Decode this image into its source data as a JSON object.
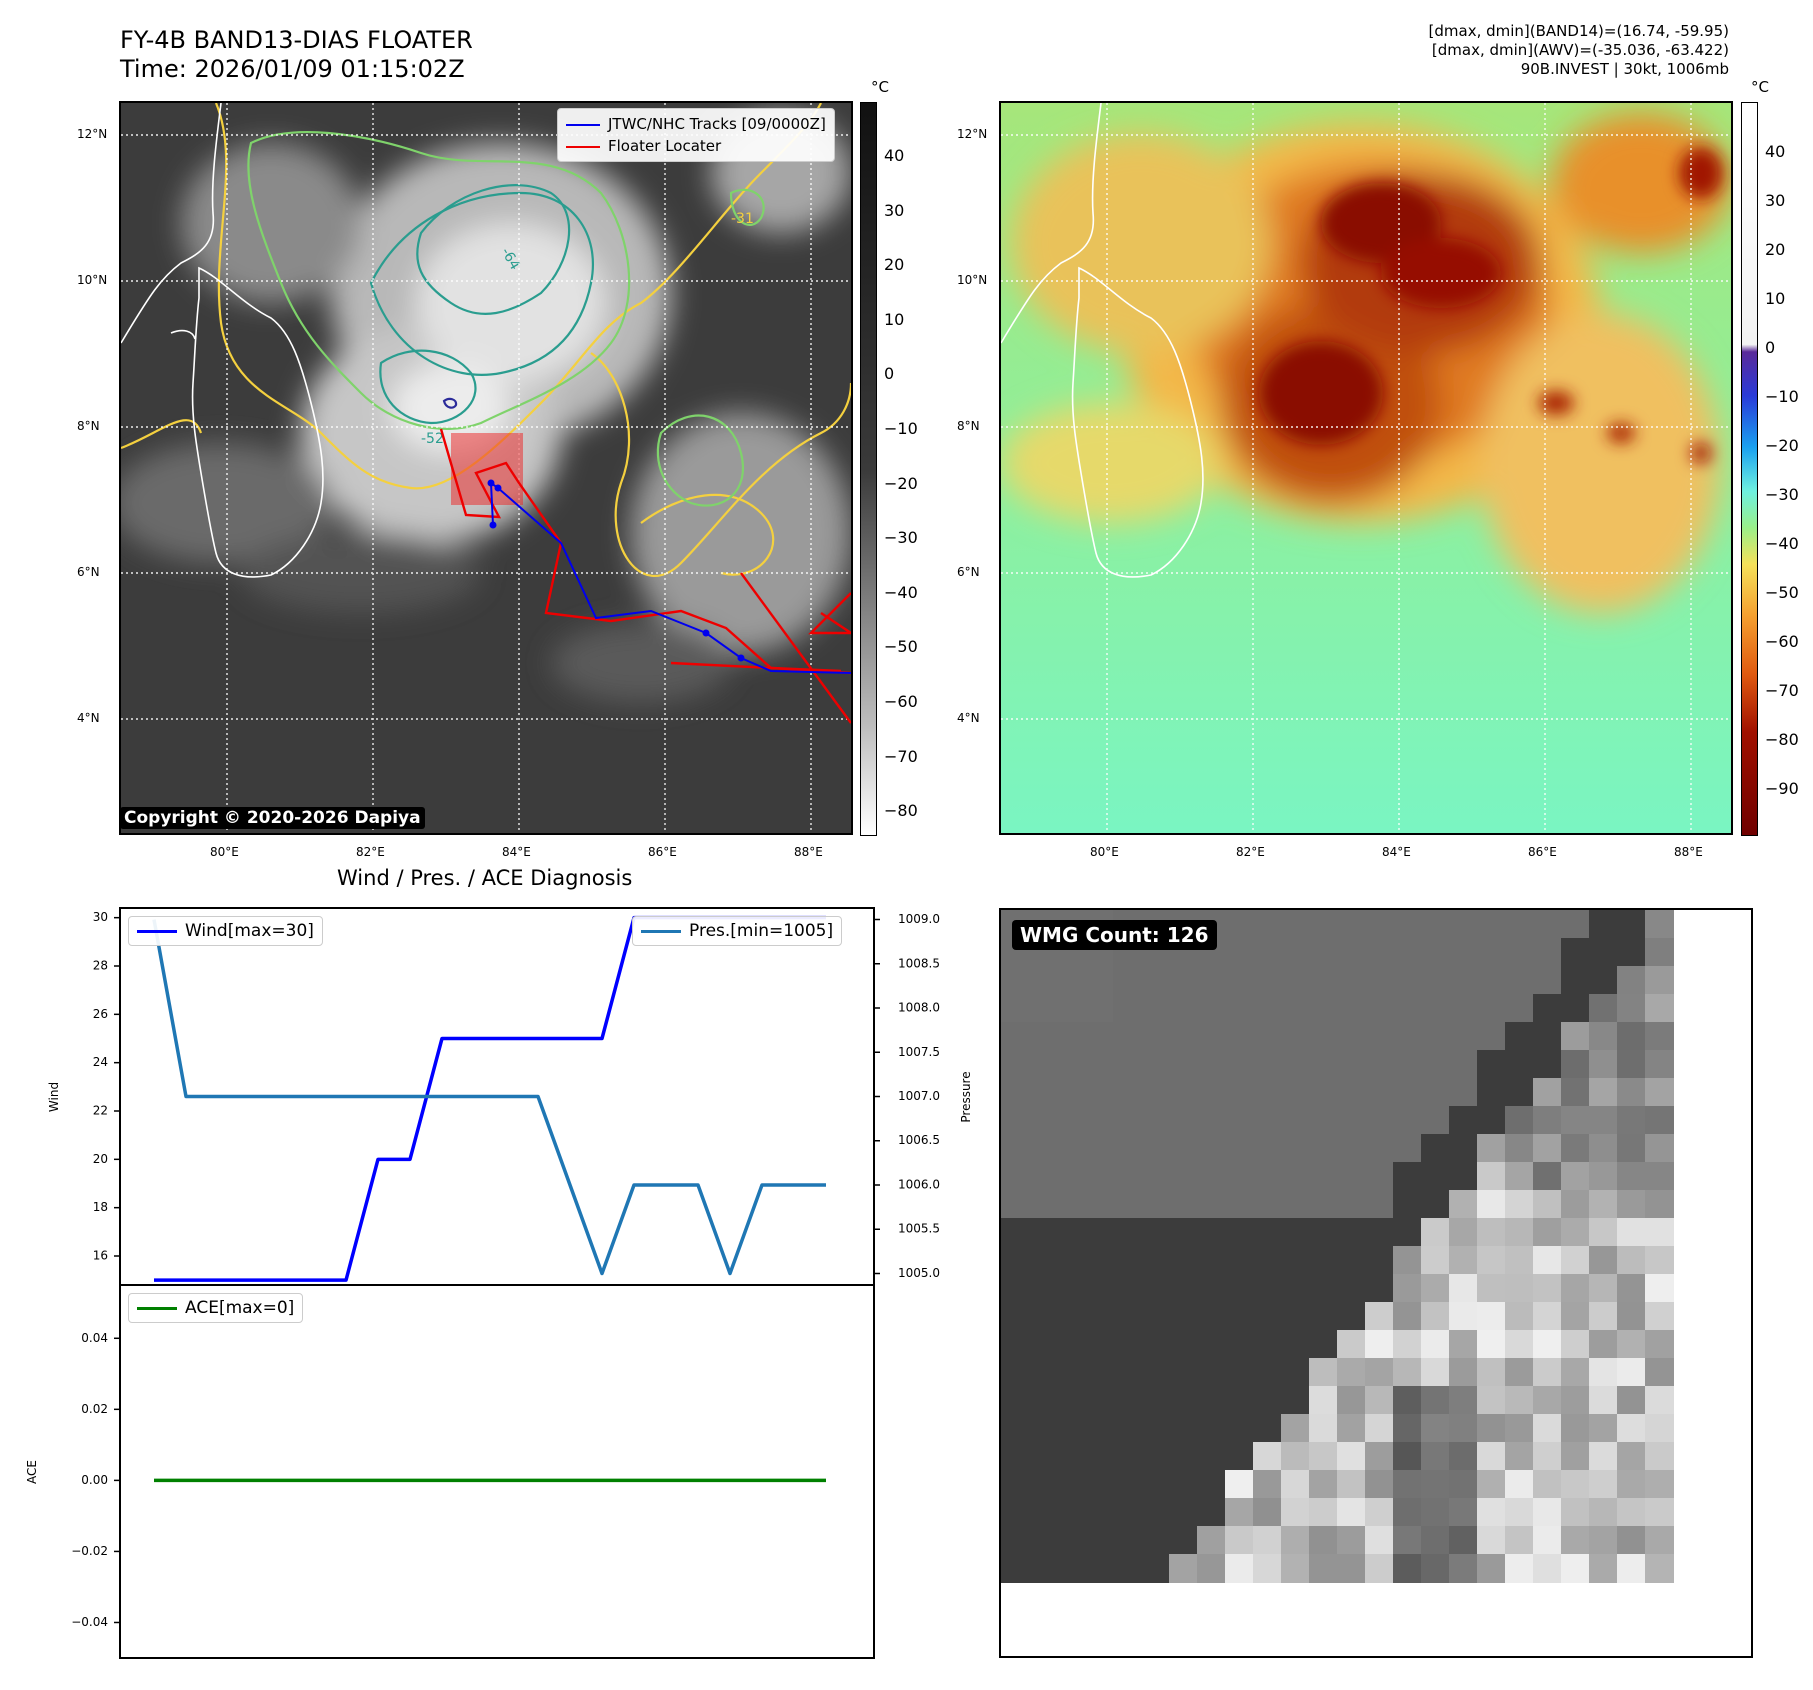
{
  "header": {
    "title_line1": "FY-4B BAND13-DIAS FLOATER",
    "title_line2": "Time: 2026/01/09 01:15:02Z",
    "right_line1": "[dmax, dmin](BAND14)=(16.74, -59.95)",
    "right_line2": "[dmax, dmin](AWV)=(-35.036, -63.422)",
    "right_line3": "90B.INVEST | 30kt, 1006mb"
  },
  "maps": {
    "lat_ticks": [
      "12°N",
      "10°N",
      "8°N",
      "6°N",
      "4°N"
    ],
    "lon_ticks": [
      "80°E",
      "82°E",
      "84°E",
      "86°E",
      "88°E"
    ],
    "copyright": "Copyright © 2020-2026 Dapiya",
    "legend": {
      "tracks": "JTWC/NHC Tracks [09/0000Z]",
      "locater": "Floater Locater"
    },
    "contour_labels": [
      "-31",
      "-64",
      "-52"
    ]
  },
  "colorbar_gray": {
    "unit": "°C",
    "ticks": [
      "40",
      "30",
      "20",
      "10",
      "0",
      "−10",
      "−20",
      "−30",
      "−40",
      "−50",
      "−60",
      "−70",
      "−80"
    ]
  },
  "colorbar_color": {
    "unit": "°C",
    "ticks": [
      "40",
      "30",
      "20",
      "10",
      "0",
      "−10",
      "−20",
      "−30",
      "−40",
      "−50",
      "−60",
      "−70",
      "−80",
      "−90"
    ]
  },
  "diag": {
    "title": "Wind / Pres. / ACE Diagnosis",
    "wind_label": "Wind",
    "pressure_label": "Pressure",
    "ace_label": "ACE",
    "wind_legend": "Wind[max=30]",
    "pres_legend": "Pres.[min=1005]",
    "ace_legend": "ACE[max=0]",
    "wind_ticks": [
      "30",
      "28",
      "26",
      "24",
      "22",
      "20",
      "18",
      "16"
    ],
    "pres_ticks": [
      "1009.0",
      "1008.5",
      "1008.0",
      "1007.5",
      "1007.0",
      "1006.5",
      "1006.0",
      "1005.5",
      "1005.0"
    ],
    "ace_ticks": [
      "0.04",
      "0.02",
      "0.00",
      "−0.02",
      "−0.04"
    ]
  },
  "wmg": {
    "label": "WMG Count: 126"
  },
  "chart_data": [
    {
      "type": "line",
      "title": "Wind / Pres. / ACE Diagnosis",
      "x": [
        0,
        1,
        2,
        3,
        4,
        5,
        6,
        7,
        8,
        9,
        10,
        11,
        12,
        13,
        14,
        15,
        16,
        17,
        18,
        19,
        20,
        21
      ],
      "series": [
        {
          "name": "Wind[max=30]",
          "axis": "left",
          "values": [
            15,
            15,
            15,
            15,
            15,
            15,
            15,
            20,
            20,
            25,
            25,
            25,
            25,
            25,
            25,
            30,
            30,
            30,
            30,
            30,
            30,
            30
          ],
          "color": "#0000ff"
        },
        {
          "name": "Pres.[min=1005]",
          "axis": "right",
          "values": [
            1009,
            1007,
            1007,
            1007,
            1007,
            1007,
            1007,
            1007,
            1007,
            1007,
            1007,
            1007,
            1007,
            1006,
            1005,
            1006,
            1006,
            1006,
            1005,
            1006,
            1006,
            1006
          ],
          "color": "#1f77b4"
        }
      ],
      "ylabel": "Wind",
      "y2label": "Pressure",
      "ylim": [
        14.8,
        30.4
      ],
      "y2lim": [
        1004.87,
        1009.13
      ]
    },
    {
      "type": "line",
      "x": [
        0,
        21
      ],
      "series": [
        {
          "name": "ACE[max=0]",
          "values": [
            0,
            0
          ],
          "color": "#008000"
        }
      ],
      "ylabel": "ACE",
      "ylim": [
        -0.05,
        0.055
      ]
    }
  ]
}
